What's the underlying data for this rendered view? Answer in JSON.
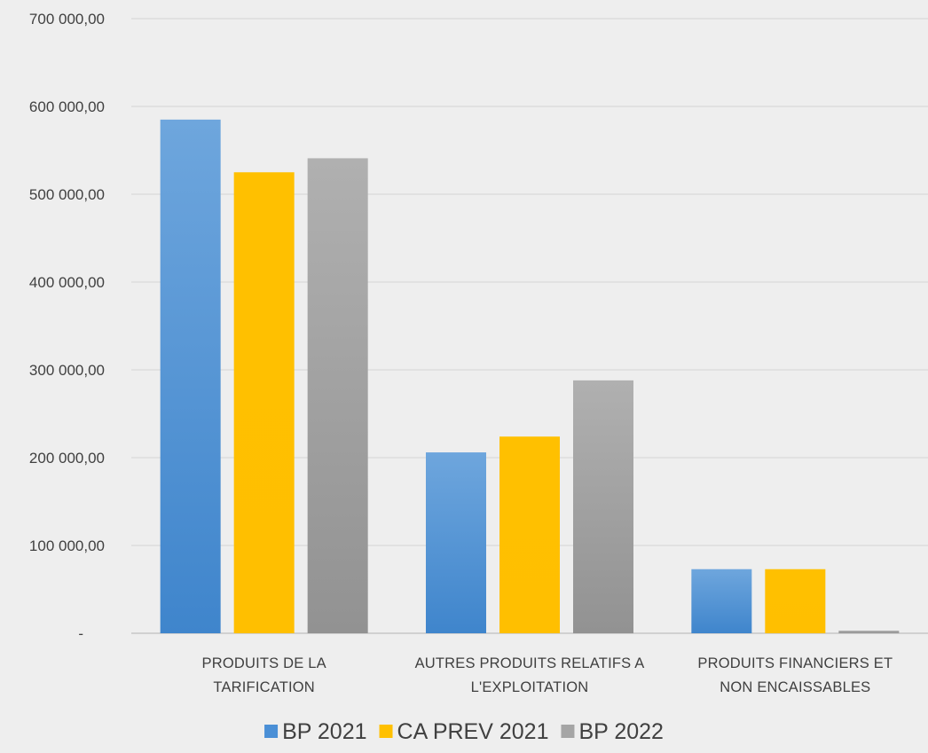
{
  "chart_data": {
    "type": "bar",
    "categories": [
      [
        "PRODUITS DE LA",
        "TARIFICATION"
      ],
      [
        "AUTRES PRODUITS RELATIFS A",
        "L'EXPLOITATION"
      ],
      [
        "PRODUITS FINANCIERS ET",
        "NON ENCAISSABLES"
      ]
    ],
    "series": [
      {
        "name": "BP 2021",
        "color": "#4a8fd6",
        "values": [
          585000,
          206000,
          73000
        ]
      },
      {
        "name": "CA PREV 2021",
        "color": "#ffc000",
        "values": [
          525000,
          224000,
          73000
        ]
      },
      {
        "name": "BP 2022",
        "color": "#a5a5a5",
        "values": [
          541000,
          288000,
          3000
        ]
      }
    ],
    "ylim": [
      0,
      700000
    ],
    "y_ticks": [
      {
        "value": 0,
        "label": "-"
      },
      {
        "value": 100000,
        "label": "100 000,00"
      },
      {
        "value": 200000,
        "label": "200 000,00"
      },
      {
        "value": 300000,
        "label": "300 000,00"
      },
      {
        "value": 400000,
        "label": "400 000,00"
      },
      {
        "value": 500000,
        "label": "500 000,00"
      },
      {
        "value": 600000,
        "label": "600 000,00"
      },
      {
        "value": 700000,
        "label": "700 000,00"
      }
    ],
    "grid": true,
    "legend_position": "bottom"
  }
}
